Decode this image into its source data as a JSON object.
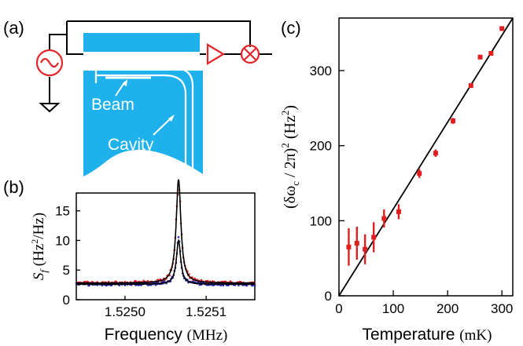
{
  "figure": {
    "panel_a": {
      "label": "(a)",
      "beam_label": "Beam",
      "cavity_label": "Cavity",
      "colors": {
        "chip": "#1eb1eb",
        "trace": "#ffffff",
        "component": "#e3262b",
        "wire": "#000000"
      },
      "icons": [
        "ac-source-icon",
        "ground-icon",
        "amplifier-icon",
        "mixer-icon"
      ]
    },
    "panel_b": {
      "label": "(b)",
      "xlabel": "Frequency (MHz)",
      "ylabel": "S_f (Hz²/Hz)"
    },
    "panel_c": {
      "label": "(c)",
      "xlabel": "Temperature (mK)",
      "ylabel": "(δω_c / 2π)² (Hz²)"
    }
  },
  "chart_data": [
    {
      "panel": "(b)",
      "type": "line",
      "xlim": [
        1.52494,
        1.52516
      ],
      "ylim": [
        0,
        18
      ],
      "x_ticks": [
        1.525,
        1.5251
      ],
      "x_tick_labels": [
        "1.5250",
        "1.5251"
      ],
      "y_ticks": [
        0,
        5,
        10,
        15
      ],
      "y_tick_labels": [
        "0",
        "5",
        "10",
        "15"
      ],
      "series": [
        {
          "color": "#d62020",
          "style": "points with black lorentzian fit",
          "background": 2.8,
          "peak_height": 17.5,
          "center": 1.525066,
          "hwhm": 3.5e-06
        },
        {
          "color": "#1f2aa8",
          "style": "points with black lorentzian fit",
          "background": 2.6,
          "peak_height": 7.4,
          "center": 1.525066,
          "hwhm": 3.2e-06
        }
      ]
    },
    {
      "panel": "(c)",
      "type": "scatter",
      "xlim": [
        0,
        320
      ],
      "ylim": [
        0,
        370
      ],
      "x_ticks": [
        0,
        100,
        200,
        300
      ],
      "y_ticks": [
        0,
        100,
        200,
        300
      ],
      "fit_line": {
        "x": [
          0,
          320
        ],
        "y": [
          0,
          370
        ]
      },
      "series": [
        {
          "color": "#e02020",
          "points": [
            {
              "x": 18,
              "y": 65,
              "yerr": 25
            },
            {
              "x": 33,
              "y": 70,
              "yerr": 22
            },
            {
              "x": 48,
              "y": 62,
              "yerr": 20
            },
            {
              "x": 64,
              "y": 78,
              "yerr": 20
            },
            {
              "x": 83,
              "y": 103,
              "yerr": 12
            },
            {
              "x": 110,
              "y": 112,
              "yerr": 10
            },
            {
              "x": 148,
              "y": 163,
              "yerr": 6
            },
            {
              "x": 178,
              "y": 190,
              "yerr": 5
            },
            {
              "x": 210,
              "y": 233,
              "yerr": 4
            },
            {
              "x": 243,
              "y": 280,
              "yerr": 3
            },
            {
              "x": 260,
              "y": 318,
              "yerr": 3
            },
            {
              "x": 280,
              "y": 323,
              "yerr": 3
            },
            {
              "x": 300,
              "y": 356,
              "yerr": 3
            }
          ]
        }
      ]
    }
  ]
}
